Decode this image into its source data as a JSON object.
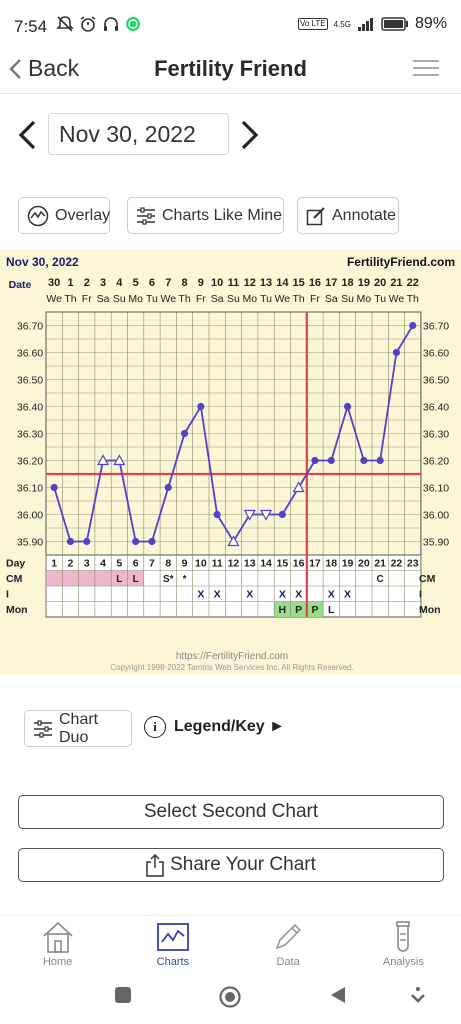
{
  "status_bar": {
    "time": "7:54",
    "battery_pct": "89%",
    "network": "4.5G",
    "volte": "Vo LTE"
  },
  "header": {
    "back_label": "Back",
    "title": "Fertility Friend"
  },
  "date_nav": {
    "date": "Nov 30, 2022"
  },
  "actions": {
    "overlay": "Overlay",
    "charts_like_mine": "Charts Like Mine",
    "annotate": "Annotate"
  },
  "chart_data": {
    "type": "line",
    "title": "Nov 30, 2022",
    "site_label": "FertilityFriend.com",
    "row_labels": {
      "date": "Date",
      "day": "Day",
      "cm": "CM",
      "i": "I",
      "mon": "Mon"
    },
    "dates": [
      "30",
      "1",
      "2",
      "3",
      "4",
      "5",
      "6",
      "7",
      "8",
      "9",
      "10",
      "11",
      "12",
      "13",
      "14",
      "15",
      "16",
      "17",
      "18",
      "19",
      "20",
      "21",
      "22"
    ],
    "weekdays": [
      "We",
      "Th",
      "Fr",
      "Sa",
      "Su",
      "Mo",
      "Tu",
      "We",
      "Th",
      "Fr",
      "Sa",
      "Su",
      "Mo",
      "Tu",
      "We",
      "Th",
      "Fr",
      "Sa",
      "Su",
      "Mo",
      "Tu",
      "We",
      "Th"
    ],
    "days": [
      1,
      2,
      3,
      4,
      5,
      6,
      7,
      8,
      9,
      10,
      11,
      12,
      13,
      14,
      15,
      16,
      17,
      18,
      19,
      20,
      21,
      22,
      23
    ],
    "temps": [
      36.1,
      35.9,
      35.9,
      36.2,
      36.2,
      35.9,
      35.9,
      36.1,
      36.3,
      36.4,
      36.0,
      35.9,
      36.0,
      36.0,
      36.0,
      36.1,
      36.2,
      36.2,
      36.4,
      36.2,
      36.2,
      36.6,
      36.7
    ],
    "markers": [
      "dot",
      "dot",
      "dot",
      "open-up",
      "open-up",
      "dot",
      "dot",
      "dot",
      "dot",
      "dot",
      "dot",
      "open-up",
      "open-down",
      "open-down",
      "dot",
      "open-up",
      "dot",
      "dot",
      "dot",
      "dot",
      "dot",
      "dot",
      "dot"
    ],
    "y_ticks": [
      "36.70",
      "36.60",
      "36.50",
      "36.40",
      "36.30",
      "36.20",
      "36.10",
      "36.00",
      "35.90"
    ],
    "ylim": [
      35.85,
      36.75
    ],
    "coverline": 36.15,
    "ovulation_day": 16,
    "cm": [
      "",
      "",
      "",
      "",
      "L",
      "L",
      "",
      "S*",
      "*",
      "",
      "",
      "",
      "",
      "",
      "",
      "",
      "",
      "",
      "",
      "",
      "C",
      "",
      ""
    ],
    "cm_color": [
      "pink",
      "pink",
      "pink",
      "pink",
      "pink",
      "pink",
      "",
      "",
      "",
      "",
      "",
      "",
      "",
      "",
      "",
      "",
      "",
      "",
      "",
      "",
      "",
      "",
      ""
    ],
    "intercourse": [
      "",
      "",
      "",
      "",
      "",
      "",
      "",
      "",
      "",
      "X",
      "X",
      "",
      "X",
      "",
      "X",
      "X",
      "",
      "X",
      "X",
      "",
      "",
      "",
      ""
    ],
    "monitor": [
      "",
      "",
      "",
      "",
      "",
      "",
      "",
      "",
      "",
      "",
      "",
      "",
      "",
      "",
      "H",
      "P",
      "P",
      "L",
      "",
      "",
      "",
      "",
      ""
    ],
    "mon_color": [
      "",
      "",
      "",
      "",
      "",
      "",
      "",
      "",
      "",
      "",
      "",
      "",
      "",
      "",
      "green",
      "green",
      "green",
      "",
      "",
      "",
      "",
      "",
      ""
    ],
    "footer_url": "https://FertilityFriend.com",
    "copyright": "Copyright 1998-2022 Tamtris Web Services Inc.   All Rights Reserved."
  },
  "bottom_controls": {
    "chart_duo": "Chart Duo",
    "legend": "Legend/Key ►",
    "info_glyph": "i",
    "select_second": "Select Second Chart",
    "share": "Share Your Chart"
  },
  "bottom_nav": {
    "home": "Home",
    "charts": "Charts",
    "data": "Data",
    "analysis": "Analysis"
  },
  "colors": {
    "line": "#5540c6",
    "coverline": "#dd4444",
    "pink": "#f0b6cc",
    "green": "#9bdb8b",
    "chart_bg": "#fbf6d5",
    "nav_active": "#3344aa"
  }
}
